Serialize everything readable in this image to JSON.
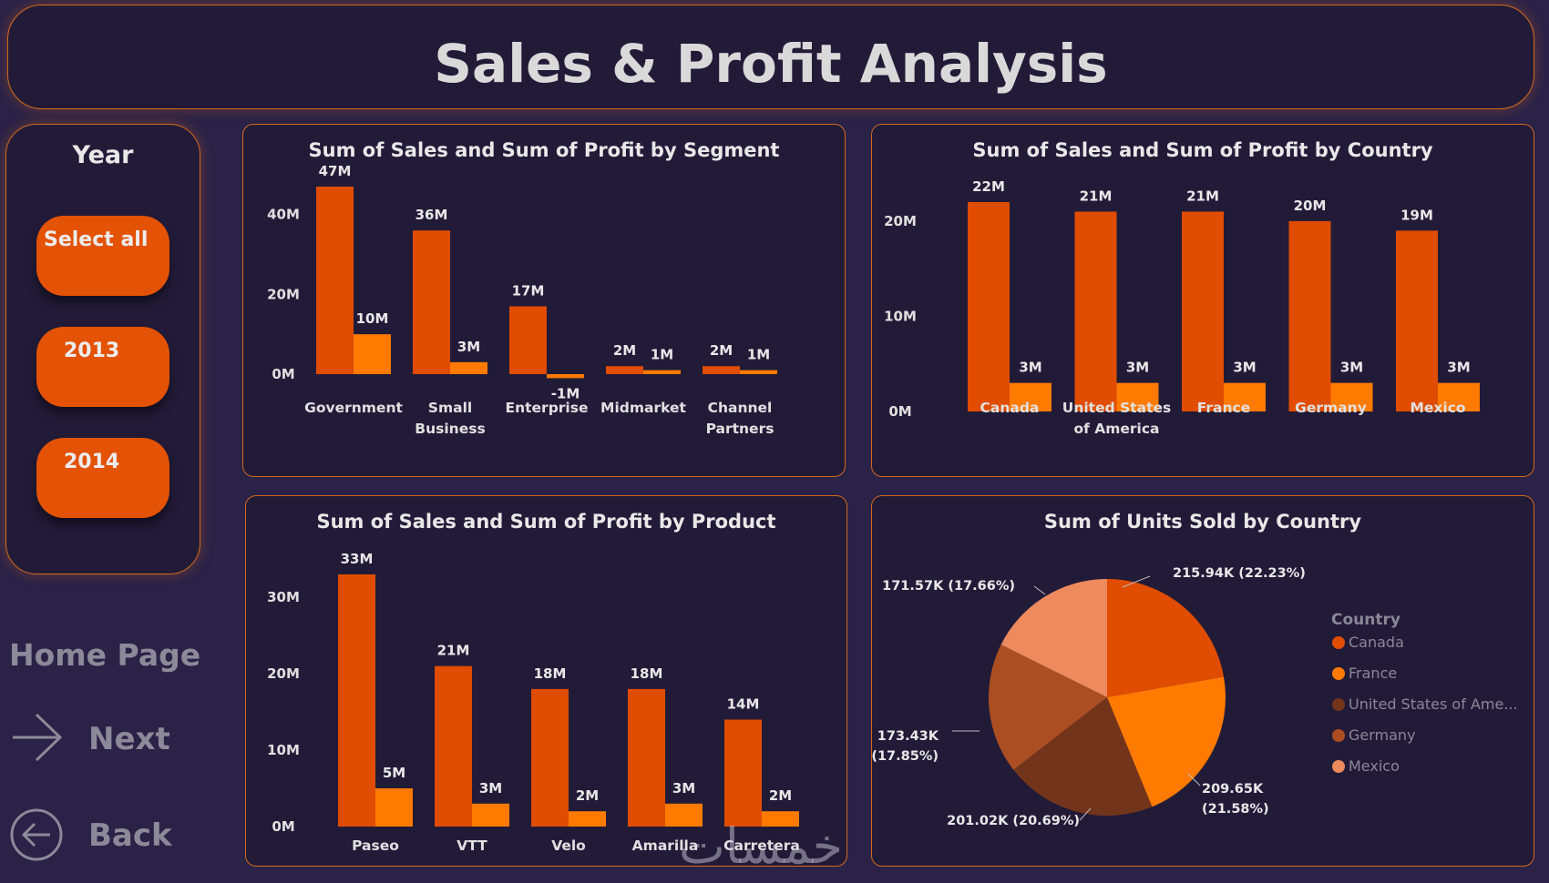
{
  "title": "Sales & Profit Analysis",
  "year_slicer": {
    "title": "Year",
    "options": [
      "Select all",
      "2013",
      "2014"
    ]
  },
  "nav": {
    "home": "Home Page",
    "next": "Next",
    "back": "Back"
  },
  "colors": {
    "sales": "#e04c00",
    "profit": "#ff7a00",
    "border": "#d2691e",
    "background": "#2a2247"
  },
  "chart_data": [
    {
      "id": "segment",
      "type": "bar",
      "title": "Sum of Sales and Sum of Profit by Segment",
      "categories": [
        [
          "Government"
        ],
        [
          "Small",
          "Business"
        ],
        [
          "Enterprise"
        ],
        [
          "Midmarket"
        ],
        [
          "Channel",
          "Partners"
        ]
      ],
      "series": [
        {
          "values": [
            47,
            36,
            17,
            2,
            2
          ],
          "labels": [
            "47M",
            "36M",
            "17M",
            "2M",
            "2M"
          ]
        },
        {
          "values": [
            10,
            3,
            -1,
            1,
            1
          ],
          "labels": [
            "10M",
            "3M",
            "-1M",
            "1M",
            "1M"
          ]
        }
      ],
      "yticks": [
        "0M",
        "20M",
        "40M"
      ],
      "ylim": [
        0,
        47
      ]
    },
    {
      "id": "country",
      "type": "bar",
      "title": "Sum of Sales and Sum of Profit by Country",
      "categories": [
        [
          "Canada"
        ],
        [
          "United States",
          "of America"
        ],
        [
          "France"
        ],
        [
          "Germany"
        ],
        [
          "Mexico"
        ]
      ],
      "series": [
        {
          "values": [
            22,
            21,
            21,
            20,
            19
          ],
          "labels": [
            "22M",
            "21M",
            "21M",
            "20M",
            "19M"
          ]
        },
        {
          "values": [
            3,
            3,
            3,
            3,
            3
          ],
          "labels": [
            "3M",
            "3M",
            "3M",
            "3M",
            "3M"
          ]
        }
      ],
      "yticks": [
        "0M",
        "10M",
        "20M"
      ],
      "ylim": [
        0,
        22
      ]
    },
    {
      "id": "product",
      "type": "bar",
      "title": "Sum of Sales and Sum of Profit by Product",
      "categories": [
        [
          "Paseo"
        ],
        [
          "VTT"
        ],
        [
          "Velo"
        ],
        [
          "Amarilla"
        ],
        [
          "Carretera"
        ]
      ],
      "series": [
        {
          "values": [
            33,
            21,
            18,
            18,
            14
          ],
          "labels": [
            "33M",
            "21M",
            "18M",
            "18M",
            "14M"
          ]
        },
        {
          "values": [
            5,
            3,
            2,
            3,
            2
          ],
          "labels": [
            "5M",
            "3M",
            "2M",
            "3M",
            "2M"
          ]
        }
      ],
      "yticks": [
        "0M",
        "10M",
        "20M",
        "30M"
      ],
      "ylim": [
        0,
        33
      ]
    },
    {
      "id": "units",
      "type": "pie",
      "title": "Sum of Units Sold by Country",
      "legend_title": "Country",
      "slices": [
        {
          "name": "Canada",
          "value": 215.94,
          "label": "215.94K (22.23%)",
          "color": "#e04c00"
        },
        {
          "name": "France",
          "value": 209.65,
          "label": "209.65K (21.58%)",
          "color": "#ff7a00"
        },
        {
          "name": "United States of Ame...",
          "value": 201.02,
          "label": "201.02K (20.69%)",
          "color": "#73341c"
        },
        {
          "name": "Germany",
          "value": 173.43,
          "label": "173.43K (17.85%)",
          "color": "#ab4e22"
        },
        {
          "name": "Mexico",
          "value": 171.57,
          "label": "171.57K (17.66%)",
          "color": "#ed8a5e"
        }
      ]
    }
  ]
}
